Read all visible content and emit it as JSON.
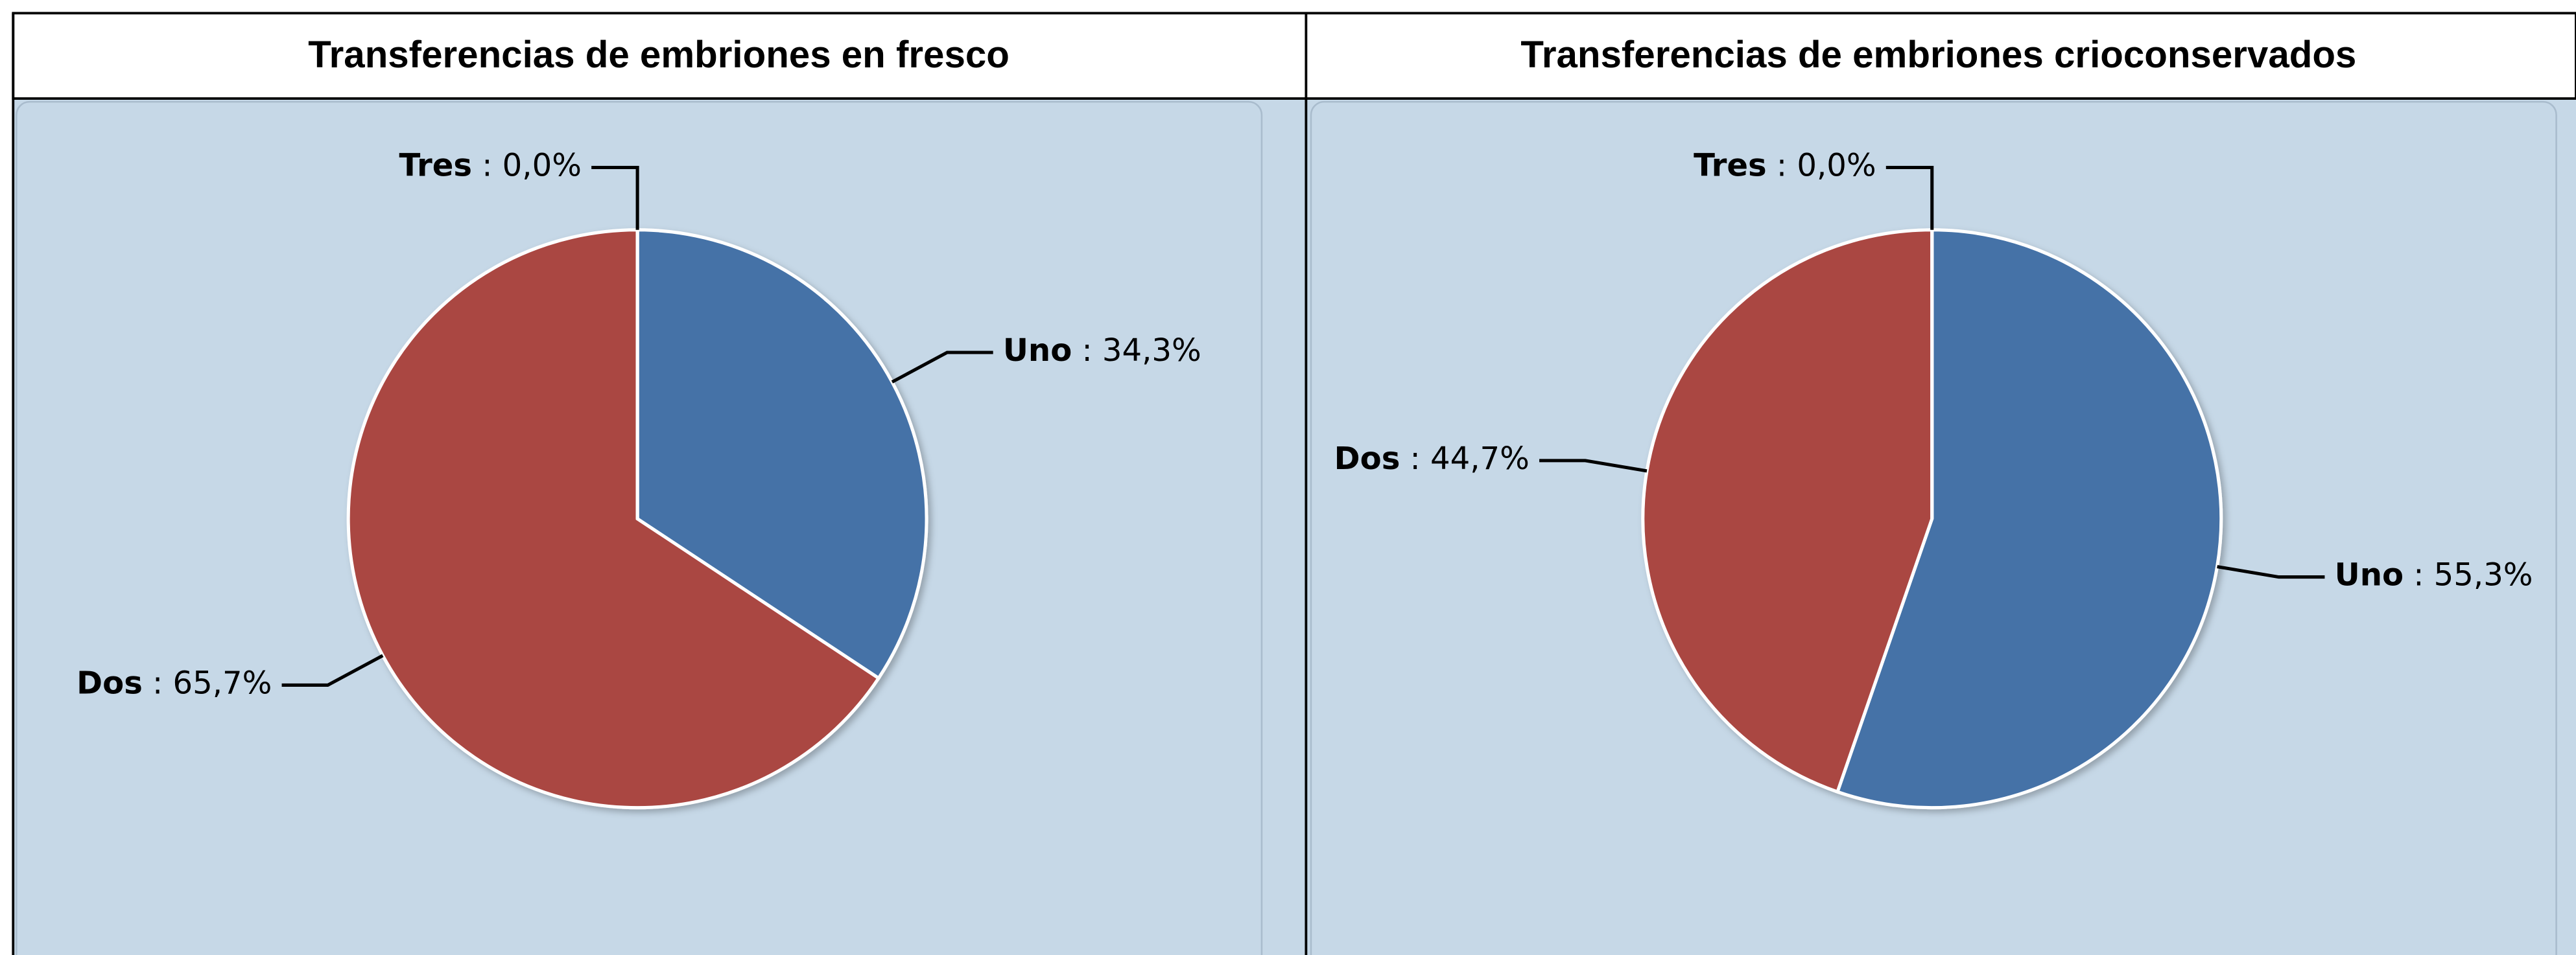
{
  "chart_data": [
    {
      "type": "pie",
      "title": "Transferencias de embriones en fresco",
      "categories": [
        "Uno",
        "Dos",
        "Tres"
      ],
      "values": [
        34.3,
        65.7,
        0.0
      ],
      "value_labels": [
        "34,3%",
        "65,7%",
        "0,0%"
      ],
      "label_separator": ":",
      "colors": [
        "#4572a7",
        "#aa4643",
        "#89a54e"
      ]
    },
    {
      "type": "pie",
      "title": "Transferencias de embriones crioconservados",
      "categories": [
        "Uno",
        "Dos",
        "Tres"
      ],
      "values": [
        55.3,
        44.7,
        0.0
      ],
      "value_labels": [
        "55,3%",
        "44,7%",
        "0,0%"
      ],
      "label_separator": ":",
      "colors": [
        "#4572a7",
        "#aa4643",
        "#89a54e"
      ]
    }
  ]
}
